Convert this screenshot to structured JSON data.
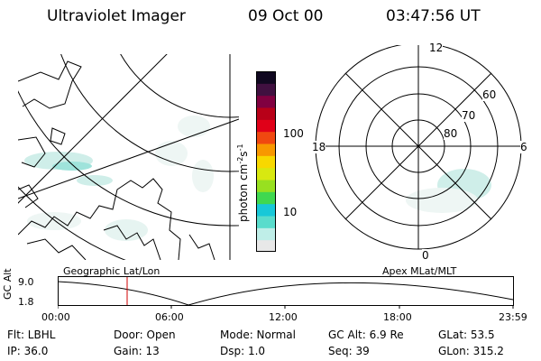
{
  "header": {
    "instrument": "Ultraviolet Imager",
    "date": "09 Oct 00",
    "time": "03:47:56 UT"
  },
  "colorbar": {
    "unit_prefix": "photon cm",
    "unit_exp1": "-2",
    "unit_mid": "s",
    "unit_exp2": "-1",
    "ticks": [
      "100",
      "10"
    ],
    "colors": [
      "#e8e8e8",
      "#bfeee8",
      "#59dccc",
      "#18c8d8",
      "#40d850",
      "#98e020",
      "#d8e810",
      "#f8d800",
      "#f89800",
      "#f04810",
      "#e00018",
      "#b80018",
      "#800040",
      "#401040",
      "#100820"
    ]
  },
  "map_labels": {
    "left_title": "Geographic Lat/Lon",
    "right_title": "Apex MLat/MLT"
  },
  "polar": {
    "mlt": [
      "12",
      "18",
      "6",
      "0"
    ],
    "lat": [
      "60",
      "70",
      "80"
    ]
  },
  "altitude": {
    "ylabel": "GC Alt",
    "yticks": [
      "9.0",
      "1.8"
    ],
    "xticks": [
      "00:00",
      "06:00",
      "12:00",
      "18:00",
      "23:59"
    ]
  },
  "info": {
    "filter": "Flt: LBHL",
    "ip": "IP: 36.0",
    "door": "Door: Open",
    "gain": "Gain: 13",
    "mode": "Mode: Normal",
    "dsp": "Dsp:    1.0",
    "gcalt": "GC Alt: 6.9 Re",
    "seq": "Seq: 39",
    "glat": "GLat:  53.5",
    "glon": "GLon: 315.2"
  }
}
